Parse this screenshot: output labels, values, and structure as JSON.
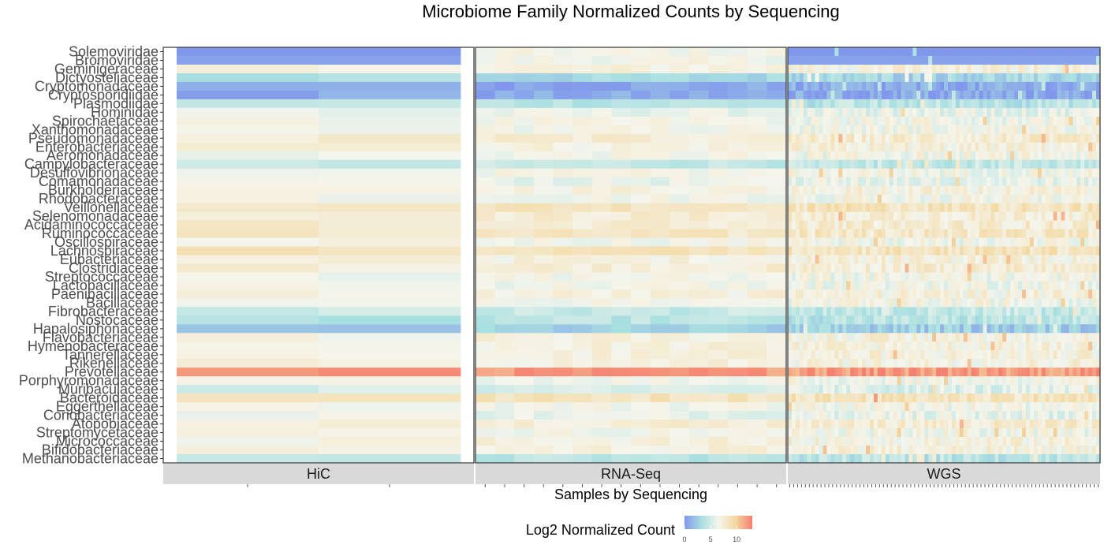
{
  "chart_data": {
    "type": "heatmap",
    "title": "Microbiome Family Normalized Counts by Sequencing",
    "xlabel": "Samples by Sequencing",
    "ylabel": "",
    "families_top_to_bottom": [
      "Solemoviridae",
      "Bromoviridae",
      "Geminigeraceae",
      "Dictyosteliaceae",
      "Cryptomonadaceae",
      "Cryptosporidiidae",
      "Plasmodiidae",
      "Hominidae",
      "Spirochaetaceae",
      "Xanthomonadaceae",
      "Pseudomonadaceae",
      "Enterobacteriaceae",
      "Aeromonadaceae",
      "Campylobacteraceae",
      "Desulfovibrionaceae",
      "Comamonadaceae",
      "Burkholderiaceae",
      "Rhodobacteraceae",
      "Veillonellaceae",
      "Selenomonadaceae",
      "Acidaminococcaceae",
      "Ruminococcaceae",
      "Oscillospiraceae",
      "Lachnospiraceae",
      "Eubacteriaceae",
      "Clostridiaceae",
      "Streptococcaceae",
      "Lactobacillaceae",
      "Paenibacillaceae",
      "Bacillaceae",
      "Fibrobacteraceae",
      "Nostocaceae",
      "Hapalosiphonaceae",
      "Flavobacteriaceae",
      "Hymenobacteraceae",
      "Tannerellaceae",
      "Rikenellaceae",
      "Prevotellaceae",
      "Porphyromonadaceae",
      "Muribaculaceae",
      "Bacteroidaceae",
      "Eggerthellaceae",
      "Coriobacteriaceae",
      "Atopobiaceae",
      "Streptomycetaceae",
      "Micrococcaceae",
      "Bifidobacteriaceae",
      "Methanobacteriaceae"
    ],
    "facets": [
      {
        "name": "HiC",
        "n_samples": 2
      },
      {
        "name": "RNA-Seq",
        "n_samples": 16
      },
      {
        "name": "WGS",
        "n_samples": 80
      }
    ],
    "family_mean_log2": [
      0,
      0.5,
      7,
      3,
      0.8,
      0.8,
      4,
      6,
      6.5,
      6.5,
      7.5,
      7,
      6.5,
      4.5,
      6.5,
      6,
      7,
      6.5,
      8.5,
      7.5,
      7.5,
      8,
      6.5,
      8.5,
      7,
      7.5,
      6.5,
      6.5,
      7,
      6.5,
      4.5,
      4,
      2.5,
      7,
      7,
      7,
      7,
      12,
      6.5,
      5.5,
      8.5,
      6.5,
      6,
      7.5,
      6.5,
      7,
      7,
      4
    ],
    "value_range": [
      0,
      13
    ],
    "color_scale": {
      "stops": [
        "#8197ec",
        "#a8dfe0",
        "#f5f5ec",
        "#f3d8a0",
        "#f57f70"
      ],
      "domain": [
        0,
        3.25,
        6.5,
        9.75,
        13
      ]
    },
    "legend": {
      "title": "Log2 Normalized Count",
      "ticks": [
        0,
        5,
        10
      ],
      "tick_labels": [
        "0",
        "5",
        "10"
      ],
      "placement": "bottom"
    },
    "grid": false
  }
}
